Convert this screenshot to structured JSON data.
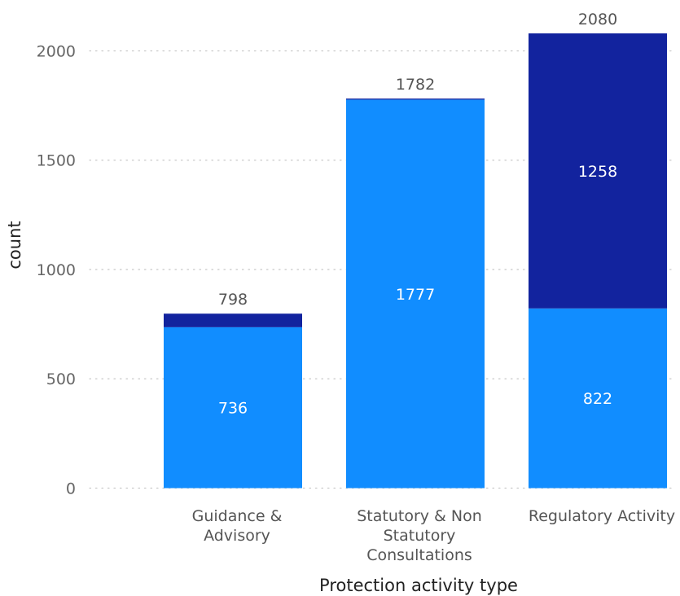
{
  "chart_data": {
    "type": "bar",
    "stacked": true,
    "xlabel": "Protection activity type",
    "ylabel": "count",
    "ylim": [
      0,
      2080
    ],
    "yticks": [
      0,
      500,
      1000,
      1500,
      2000
    ],
    "grid": true,
    "categories": [
      [
        "Guidance &",
        "Advisory"
      ],
      [
        "Statutory & Non",
        "Statutory",
        "Consultations"
      ],
      [
        "Regulatory Activity"
      ]
    ],
    "series": [
      {
        "color": "#118DFF",
        "values": [
          736,
          1777,
          822
        ],
        "labels": [
          "736",
          "1777",
          "822"
        ]
      },
      {
        "color": "#12239E",
        "values": [
          62,
          5,
          1258
        ],
        "labels": [
          "",
          "",
          "1258"
        ]
      }
    ],
    "totals": [
      798,
      1782,
      2080
    ]
  }
}
